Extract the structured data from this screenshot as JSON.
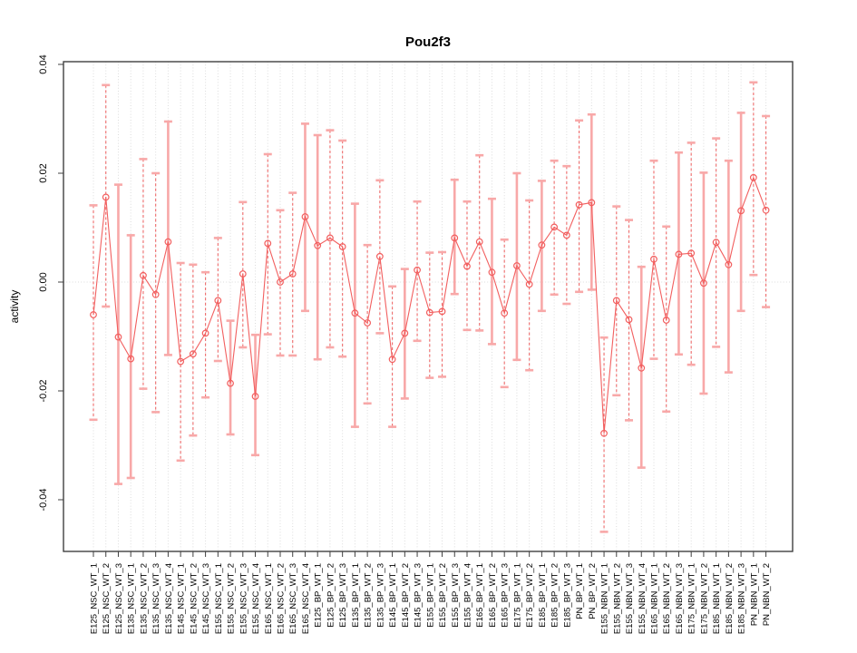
{
  "chart_data": {
    "type": "line",
    "subtype": "points-with-error-bars",
    "title": "Pou2f3",
    "xlabel": "",
    "ylabel": "activity",
    "ylim": [
      -0.0495,
      0.0405
    ],
    "yticks": [
      0.04,
      0.02,
      0.0,
      -0.02,
      -0.04
    ],
    "ytick_labels": [
      "0.04",
      "0.02",
      "0.00",
      "-0.02",
      "-0.04"
    ],
    "grid": "vertical dotted gridline at every category; horizontal dotted line at 0.00 only",
    "legend": "none",
    "point_style": "open-circle",
    "categories": [
      "E125_NSC_WT_1",
      "E125_NSC_WT_2",
      "E125_NSC_WT_3",
      "E135_NSC_WT_1",
      "E135_NSC_WT_2",
      "E135_NSC_WT_3",
      "E135_NSC_WT_4",
      "E145_NSC_WT_1",
      "E145_NSC_WT_2",
      "E145_NSC_WT_3",
      "E155_NSC_WT_1",
      "E155_NSC_WT_2",
      "E155_NSC_WT_3",
      "E155_NSC_WT_4",
      "E165_NSC_WT_1",
      "E165_NSC_WT_2",
      "E165_NSC_WT_3",
      "E165_NSC_WT_4",
      "E125_BP_WT_1",
      "E125_BP_WT_2",
      "E125_BP_WT_3",
      "E135_BP_WT_1",
      "E135_BP_WT_2",
      "E135_BP_WT_3",
      "E145_BP_WT_1",
      "E145_BP_WT_2",
      "E145_BP_WT_3",
      "E155_BP_WT_1",
      "E155_BP_WT_2",
      "E155_BP_WT_3",
      "E155_BP_WT_4",
      "E165_BP_WT_1",
      "E165_BP_WT_2",
      "E165_BP_WT_3",
      "E175_BP_WT_1",
      "E175_BP_WT_2",
      "E185_BP_WT_1",
      "E185_BP_WT_2",
      "E185_BP_WT_3",
      "PN_BP_WT_1",
      "PN_BP_WT_2",
      "E155_NBN_WT_1",
      "E155_NBN_WT_2",
      "E155_NBN_WT_3",
      "E155_NBN_WT_4",
      "E165_NBN_WT_1",
      "E165_NBN_WT_2",
      "E165_NBN_WT_3",
      "E175_NBN_WT_1",
      "E175_NBN_WT_2",
      "E185_NBN_WT_1",
      "E185_NBN_WT_2",
      "E185_NBN_WT_3",
      "PN_NBN_WT_1",
      "PN_NBN_WT_2"
    ],
    "series": [
      {
        "name": "activity",
        "values": [
          -0.006,
          0.0156,
          -0.0101,
          -0.0141,
          0.0012,
          -0.0023,
          0.0074,
          -0.0146,
          -0.0132,
          -0.0094,
          -0.0034,
          -0.0186,
          0.0015,
          -0.021,
          0.0071,
          0.0,
          0.0015,
          0.012,
          0.0067,
          0.0081,
          0.0065,
          -0.0057,
          -0.0075,
          0.0047,
          -0.0142,
          -0.0094,
          0.0022,
          -0.0056,
          -0.0054,
          0.0081,
          0.0029,
          0.0074,
          0.0018,
          -0.0057,
          0.003,
          -0.0004,
          0.0068,
          0.0101,
          0.0086,
          0.0142,
          0.0146,
          -0.0278,
          -0.0034,
          -0.0069,
          -0.0158,
          0.0042,
          -0.007,
          0.0051,
          0.0053,
          -0.0002,
          0.0073,
          0.0032,
          0.0131,
          0.0192,
          0.0132
        ],
        "err_lo": [
          -0.0253,
          -0.0045,
          -0.0371,
          -0.036,
          -0.0196,
          -0.0239,
          -0.0134,
          -0.0328,
          -0.0282,
          -0.0212,
          -0.0145,
          -0.028,
          -0.012,
          -0.0318,
          -0.0096,
          -0.0135,
          -0.0135,
          -0.0053,
          -0.0142,
          -0.012,
          -0.0137,
          -0.0266,
          -0.0223,
          -0.0094,
          -0.0266,
          -0.0214,
          -0.0108,
          -0.0176,
          -0.0174,
          -0.0022,
          -0.0088,
          -0.0089,
          -0.0114,
          -0.0193,
          -0.0143,
          -0.0162,
          -0.0053,
          -0.0023,
          -0.004,
          -0.0018,
          -0.0014,
          -0.0459,
          -0.0208,
          -0.0254,
          -0.0341,
          -0.0141,
          -0.0238,
          -0.0133,
          -0.0152,
          -0.0205,
          -0.0119,
          -0.0166,
          -0.0053,
          0.0013,
          -0.0046
        ],
        "err_hi": [
          0.0141,
          0.0362,
          0.0179,
          0.0086,
          0.0226,
          0.02,
          0.0295,
          0.0035,
          0.0032,
          0.0018,
          0.0081,
          -0.0071,
          0.0147,
          -0.0097,
          0.0235,
          0.0132,
          0.0164,
          0.0291,
          0.027,
          0.0279,
          0.026,
          0.0144,
          0.0068,
          0.0187,
          -0.0008,
          0.0024,
          0.0148,
          0.0054,
          0.0055,
          0.0188,
          0.0148,
          0.0233,
          0.0153,
          0.0078,
          0.02,
          0.015,
          0.0186,
          0.0223,
          0.0213,
          0.0297,
          0.0308,
          -0.0102,
          0.0139,
          0.0114,
          0.0028,
          0.0223,
          0.0102,
          0.0238,
          0.0256,
          0.0201,
          0.0264,
          0.0223,
          0.0311,
          0.0367,
          0.0305
        ],
        "bar_styles": [
          "dashed",
          "dashed",
          "solid",
          "solid",
          "dashed",
          "dashed",
          "solid",
          "dashed",
          "dashed",
          "dashed",
          "dashed",
          "solid",
          "dashed",
          "solid",
          "dashed",
          "dashed",
          "dashed",
          "solid",
          "solid",
          "dashed",
          "dashed",
          "solid",
          "dashed",
          "dashed",
          "dashed",
          "solid",
          "dashed",
          "dashed",
          "dashed",
          "solid",
          "dashed",
          "dashed",
          "solid",
          "dashed",
          "solid",
          "dashed",
          "solid",
          "dashed",
          "dashed",
          "dashed",
          "solid",
          "dashed",
          "dashed",
          "dashed",
          "solid",
          "dashed",
          "dashed",
          "solid",
          "dashed",
          "solid",
          "dashed",
          "solid",
          "solid",
          "dashed",
          "dashed"
        ]
      }
    ],
    "colors": {
      "line": "#f25f5f",
      "marker": "#f25f5f",
      "error_bar_dashed": "#ef6b6b",
      "error_bar_solid": "#f8a8a8",
      "error_bar_cap": "#f8a8a8",
      "gridline": "#dcdcdc",
      "axis": "#404040",
      "text": "#000000"
    }
  }
}
